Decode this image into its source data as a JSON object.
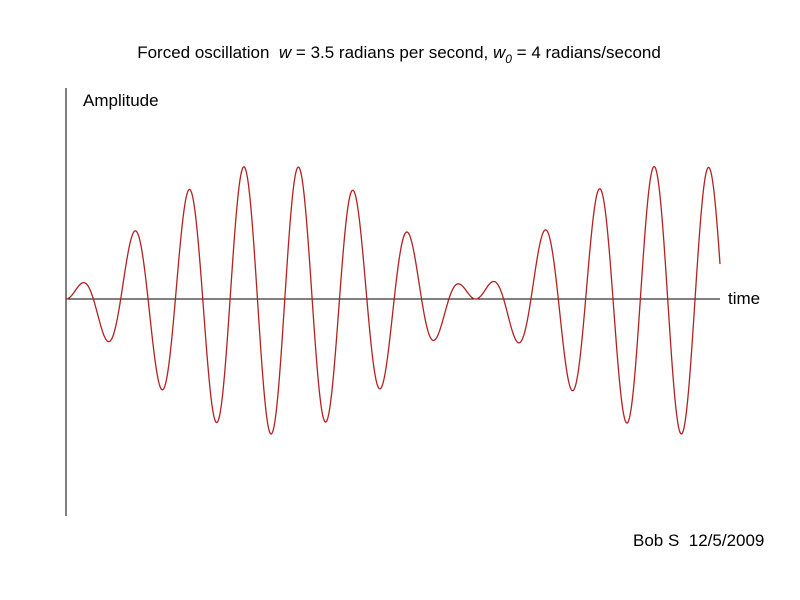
{
  "title": {
    "lead": "Forced oscillation  ",
    "w": "w",
    "mid": " = 3.5 radians per second, ",
    "w0": "w",
    "sub": "0",
    "tail": " = 4 radians/second"
  },
  "y_axis_label": "Amplitude",
  "x_axis_label": "time",
  "signature": "Bob S  12/5/2009"
}
